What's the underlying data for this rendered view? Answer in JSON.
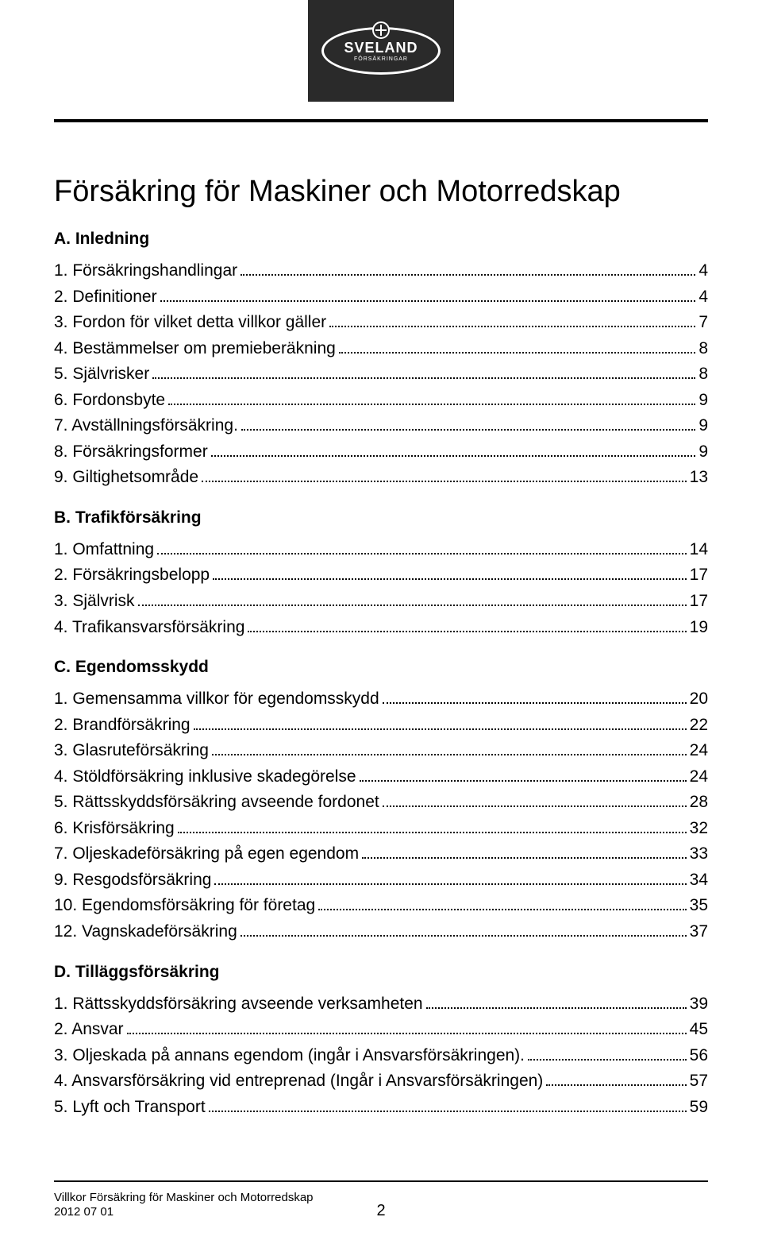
{
  "logo": {
    "name": "SVELAND",
    "sub": "FÖRSÄKRINGAR"
  },
  "title": "Försäkring för Maskiner och Motorredskap",
  "sections": [
    {
      "head": "A. Inledning",
      "items": [
        {
          "label": "1. Försäkringshandlingar",
          "page": "4"
        },
        {
          "label": "2. Definitioner",
          "page": "4"
        },
        {
          "label": "3. Fordon för vilket detta villkor gäller",
          "page": "7"
        },
        {
          "label": "4. Bestämmelser om premieberäkning",
          "page": "8"
        },
        {
          "label": "5. Självrisker",
          "page": "8"
        },
        {
          "label": "6. Fordonsbyte",
          "page": "9"
        },
        {
          "label": "7. Avställningsförsäkring.",
          "page": "9"
        },
        {
          "label": "8. Försäkringsformer",
          "page": "9"
        },
        {
          "label": "9. Giltighetsområde",
          "page": "13"
        }
      ]
    },
    {
      "head": "B. Trafikförsäkring",
      "items": [
        {
          "label": "1. Omfattning",
          "page": "14"
        },
        {
          "label": "2. Försäkringsbelopp",
          "page": "17"
        },
        {
          "label": "3. Självrisk",
          "page": "17"
        },
        {
          "label": "4. Trafikansvarsförsäkring",
          "page": "19"
        }
      ]
    },
    {
      "head": "C. Egendomsskydd",
      "items": [
        {
          "label": "1. Gemensamma villkor för egendomsskydd",
          "page": "20"
        },
        {
          "label": "2. Brandförsäkring",
          "page": "22"
        },
        {
          "label": "3. Glasruteförsäkring",
          "page": "24"
        },
        {
          "label": "4. Stöldförsäkring inklusive skadegörelse",
          "page": "24"
        },
        {
          "label": "5. Rättsskyddsförsäkring avseende fordonet",
          "page": "28"
        },
        {
          "label": "6. Krisförsäkring",
          "page": "32"
        },
        {
          "label": "7. Oljeskadeförsäkring på egen egendom",
          "page": "33"
        },
        {
          "label": "9. Resgodsförsäkring",
          "page": "34"
        },
        {
          "label": "10. Egendomsförsäkring för företag",
          "page": "35"
        },
        {
          "label": "12. Vagnskadeförsäkring",
          "page": "37"
        }
      ]
    },
    {
      "head": "D. Tilläggsförsäkring",
      "items": [
        {
          "label": "1. Rättsskyddsförsäkring avseende verksamheten",
          "page": "39"
        },
        {
          "label": "2. Ansvar",
          "page": "45"
        },
        {
          "label": "3. Oljeskada på annans egendom (ingår i Ansvarsförsäkringen).",
          "page": "56"
        },
        {
          "label": "4. Ansvarsförsäkring vid entreprenad (Ingår i Ansvarsförsäkringen)",
          "page": "57"
        },
        {
          "label": "5. Lyft och Transport",
          "page": "59"
        }
      ]
    }
  ],
  "footer": {
    "line1": "Villkor Försäkring för Maskiner och Motorredskap",
    "line2": "2012 07 01",
    "pageno": "2"
  }
}
